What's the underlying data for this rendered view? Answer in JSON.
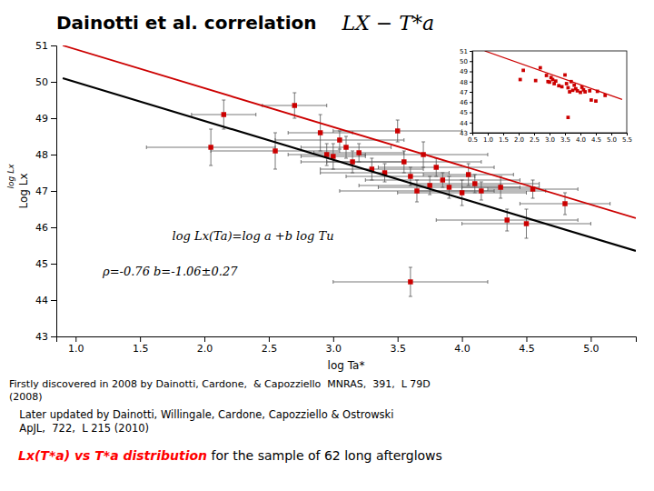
{
  "chart_data": [
    {
      "type": "scatter",
      "title": "Dainotti et al. correlation",
      "subtitle": "LX − T*a",
      "x_label": "log Ta*",
      "y_label": "Log Lx",
      "xlim": [
        0.85,
        5.35
      ],
      "ylim": [
        43,
        51
      ],
      "xticks": [
        {
          "value": 1,
          "label": "1.0"
        },
        1.5,
        {
          "value": 2,
          "label": "2.0"
        },
        2.5,
        {
          "value": 3,
          "label": "3.0"
        },
        3.5,
        {
          "value": 4,
          "label": "4.0"
        },
        4.5,
        {
          "value": 5,
          "label": "5.0"
        }
      ],
      "yticks": [
        43,
        44,
        45,
        46,
        47,
        48,
        49,
        50,
        51
      ],
      "grid": false,
      "series": [
        {
          "type": "scatter",
          "color": "#cc0000",
          "marker": "square",
          "x": [
            2.15,
            2.7,
            2.05,
            2.55,
            2.9,
            2.95,
            3.0,
            3.05,
            3.1,
            3.15,
            3.2,
            3.3,
            3.4,
            3.5,
            3.55,
            3.6,
            3.65,
            3.7,
            3.75,
            3.8,
            3.85,
            3.9,
            4.0,
            4.05,
            4.1,
            4.15,
            4.3,
            4.35,
            4.5,
            4.55,
            3.6,
            4.8
          ],
          "values": [
            49.1,
            49.35,
            48.2,
            48.1,
            48.6,
            48.0,
            47.95,
            48.4,
            48.2,
            47.8,
            48.05,
            47.6,
            47.5,
            48.65,
            47.8,
            47.4,
            47.0,
            48.0,
            47.15,
            47.65,
            47.3,
            47.1,
            46.95,
            47.45,
            47.2,
            47.0,
            47.1,
            46.2,
            46.1,
            47.05,
            44.5,
            46.65
          ],
          "xerr": [
            0.25,
            0.25,
            0.5,
            0.5,
            0.25,
            0.3,
            0.25,
            0.5,
            0.35,
            0.4,
            0.35,
            0.4,
            0.5,
            0.5,
            0.6,
            0.5,
            0.6,
            0.5,
            0.55,
            0.45,
            0.6,
            0.55,
            0.5,
            0.35,
            0.5,
            0.5,
            0.3,
            0.55,
            0.5,
            0.35,
            0.6,
            0.35
          ],
          "yerr": [
            0.4,
            0.35,
            0.5,
            0.5,
            0.5,
            0.3,
            0.35,
            0.25,
            0.3,
            0.3,
            0.25,
            0.3,
            0.25,
            0.3,
            0.3,
            0.25,
            0.3,
            0.35,
            0.25,
            0.25,
            0.2,
            0.3,
            0.35,
            0.3,
            0.25,
            0.25,
            0.3,
            0.3,
            0.4,
            0.25,
            0.4,
            0.3
          ]
        },
        {
          "type": "line",
          "color": "#000000",
          "line_style": "solid",
          "x": [
            0.9,
            5.35
          ],
          "values": [
            50.1,
            45.35
          ]
        },
        {
          "type": "line",
          "color": "#cc0000",
          "line_style": "solid",
          "x": [
            0.9,
            5.35
          ],
          "values": [
            51.0,
            46.25
          ]
        }
      ],
      "annotations": [
        {
          "text": "log Lx"
        },
        {
          "text": "log Lx(Ta)=log a +b log Tu"
        },
        {
          "text": "ρ=-0.76  b=-1.06±0.27"
        },
        {
          "text": "Firstly discovered in 2008 by Dainotti, Cardone,  & Capozziello  MNRAS,  391,  L 79D\n(2008)"
        },
        {
          "text": "  Later updated by Dainotti, Willingale, Cardone, Capozziello & Ostrowski\n  ApJL,  722,  L 215 (2010)"
        },
        {
          "text": "Lx(T*a) vs T*a distribution",
          "color": "red"
        },
        {
          "text": " for the sample of 62 long afterglows"
        }
      ]
    },
    {
      "type": "scatter",
      "xlim": [
        0.5,
        5.5
      ],
      "ylim": [
        43,
        51
      ],
      "xticks": [
        0.5,
        {
          "value": 1,
          "label": "1.0"
        },
        1.5,
        {
          "value": 2,
          "label": "2.0"
        },
        2.5,
        {
          "value": 3,
          "label": "3.0"
        },
        3.5,
        {
          "value": 4,
          "label": "4.0"
        },
        4.5,
        {
          "value": 5,
          "label": "5.0"
        },
        5.5
      ],
      "yticks": [
        43,
        44,
        45,
        46,
        47,
        48,
        49,
        50,
        51
      ],
      "grid": false,
      "series": [
        {
          "type": "scatter",
          "color": "#cc0000",
          "marker": "square",
          "x": [
            2.15,
            2.7,
            2.05,
            2.55,
            2.9,
            2.95,
            3.0,
            3.05,
            3.1,
            3.15,
            3.2,
            3.3,
            3.4,
            3.5,
            3.55,
            3.6,
            3.65,
            3.7,
            3.75,
            3.8,
            3.85,
            3.9,
            4.0,
            4.05,
            4.1,
            4.15,
            4.3,
            4.35,
            4.5,
            4.55,
            3.6,
            4.8
          ],
          "values": [
            49.1,
            49.35,
            48.2,
            48.1,
            48.6,
            48.0,
            47.95,
            48.4,
            48.2,
            47.8,
            48.05,
            47.6,
            47.5,
            48.65,
            47.8,
            47.4,
            47.0,
            48.0,
            47.15,
            47.65,
            47.3,
            47.1,
            46.95,
            47.45,
            47.2,
            47.0,
            47.1,
            46.2,
            46.1,
            47.05,
            44.5,
            46.65
          ]
        },
        {
          "type": "line",
          "color": "#cc0000",
          "line_style": "solid",
          "x": [
            0.9,
            5.35
          ],
          "values": [
            51.0,
            46.25
          ]
        }
      ]
    }
  ]
}
